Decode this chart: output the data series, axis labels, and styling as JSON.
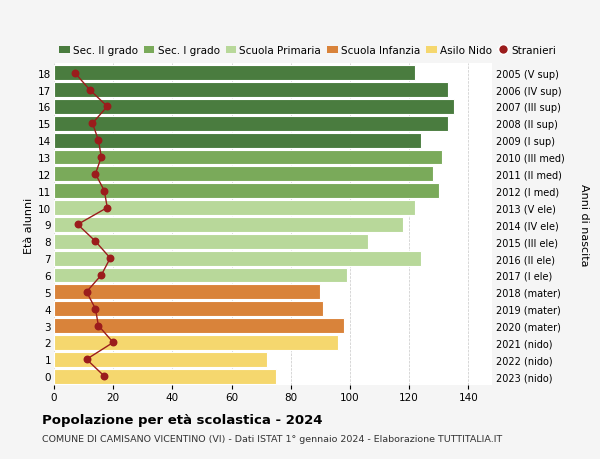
{
  "ages": [
    18,
    17,
    16,
    15,
    14,
    13,
    12,
    11,
    10,
    9,
    8,
    7,
    6,
    5,
    4,
    3,
    2,
    1,
    0
  ],
  "years": [
    "2005 (V sup)",
    "2006 (IV sup)",
    "2007 (III sup)",
    "2008 (II sup)",
    "2009 (I sup)",
    "2010 (III med)",
    "2011 (II med)",
    "2012 (I med)",
    "2013 (V ele)",
    "2014 (IV ele)",
    "2015 (III ele)",
    "2016 (II ele)",
    "2017 (I ele)",
    "2018 (mater)",
    "2019 (mater)",
    "2020 (mater)",
    "2021 (nido)",
    "2022 (nido)",
    "2023 (nido)"
  ],
  "bar_values": [
    122,
    133,
    135,
    133,
    124,
    131,
    128,
    130,
    122,
    118,
    106,
    124,
    99,
    90,
    91,
    98,
    96,
    72,
    75
  ],
  "stranieri": [
    7,
    12,
    18,
    13,
    15,
    16,
    14,
    17,
    18,
    8,
    14,
    19,
    16,
    11,
    14,
    15,
    20,
    11,
    17
  ],
  "bar_colors": [
    "#4a7c3f",
    "#4a7c3f",
    "#4a7c3f",
    "#4a7c3f",
    "#4a7c3f",
    "#7aaa5a",
    "#7aaa5a",
    "#7aaa5a",
    "#b8d89a",
    "#b8d89a",
    "#b8d89a",
    "#b8d89a",
    "#b8d89a",
    "#d9833a",
    "#d9833a",
    "#d9833a",
    "#f5d76e",
    "#f5d76e",
    "#f5d76e"
  ],
  "legend_labels": [
    "Sec. II grado",
    "Sec. I grado",
    "Scuola Primaria",
    "Scuola Infanzia",
    "Asilo Nido",
    "Stranieri"
  ],
  "legend_colors": [
    "#4a7c3f",
    "#7aaa5a",
    "#b8d89a",
    "#d9833a",
    "#f5d76e",
    "#9b1c1c"
  ],
  "stranieri_color": "#9b1c1c",
  "title": "Popolazione per età scolastica - 2024",
  "subtitle": "COMUNE DI CAMISANO VICENTINO (VI) - Dati ISTAT 1° gennaio 2024 - Elaborazione TUTTITALIA.IT",
  "ylabel_left": "Età alunni",
  "ylabel_right": "Anni di nascita",
  "xlim": [
    0,
    148
  ],
  "background_color": "#f5f5f5",
  "bar_background": "#ffffff",
  "grid_color": "#c8c8c8"
}
